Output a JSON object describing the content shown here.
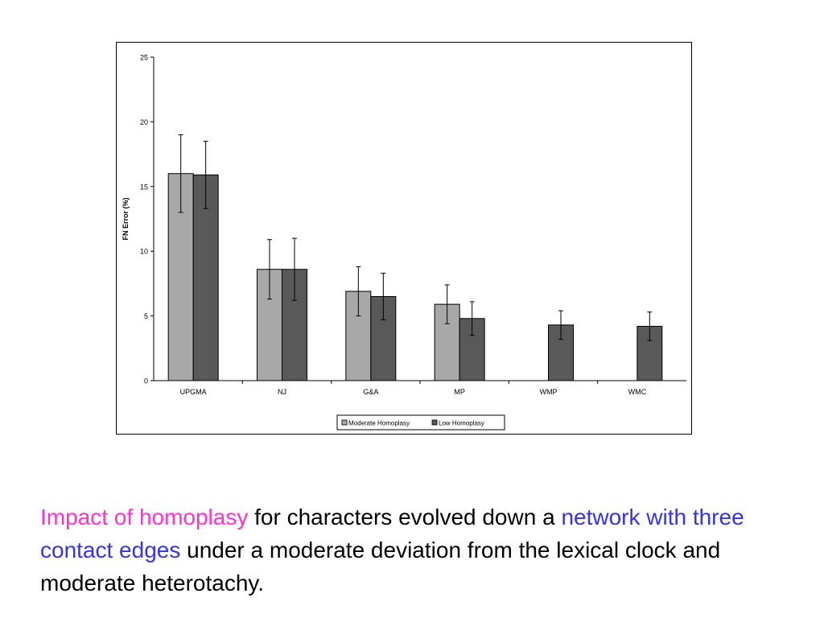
{
  "chart_data": {
    "type": "bar",
    "title": "",
    "xlabel": "",
    "ylabel": "FN Error (%)",
    "ylim": [
      0,
      25
    ],
    "yticks": [
      "0",
      "5",
      "10",
      "15",
      "20",
      "25"
    ],
    "grid": false,
    "legend_position": "bottom-center",
    "categories": [
      "UPGMA",
      "NJ",
      "G&A",
      "MP",
      "WMP",
      "WMC"
    ],
    "series": [
      {
        "name": "Moderate Homoplasy",
        "color": "#a8a8a8",
        "values": [
          16.0,
          8.6,
          6.9,
          5.9,
          null,
          null
        ],
        "errors": [
          3.0,
          2.3,
          1.9,
          1.5,
          null,
          null
        ]
      },
      {
        "name": "Low Homoplasy",
        "color": "#595959",
        "values": [
          15.9,
          8.6,
          6.5,
          4.8,
          4.3,
          4.2
        ],
        "errors": [
          2.6,
          2.4,
          1.8,
          1.3,
          1.1,
          1.1
        ]
      }
    ]
  },
  "caption": {
    "highlight1": "Impact of homoplasy",
    "text1": " for characters evolved down a ",
    "highlight2": "network with three contact edges",
    "text2": " under a moderate deviation from the lexical clock and moderate heterotachy.",
    "highlight1_color": "#ff33cc",
    "highlight2_color": "#3333ee"
  }
}
